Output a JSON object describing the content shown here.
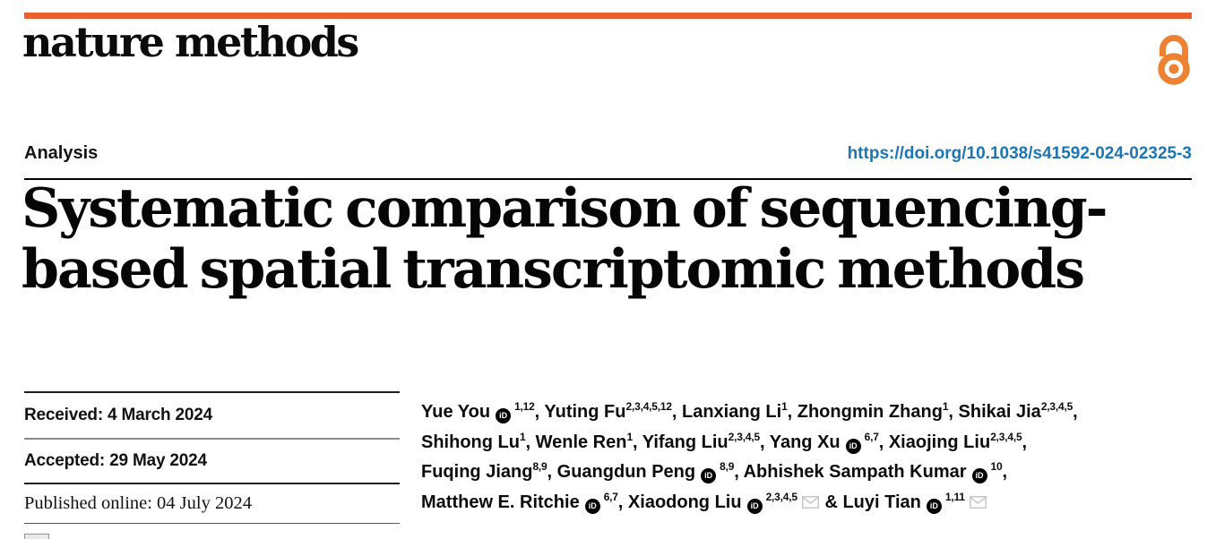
{
  "masthead": {
    "journal": "nature methods"
  },
  "header": {
    "article_type": "Analysis",
    "doi": "https://doi.org/10.1038/s41592-024-02325-3"
  },
  "title": "Systematic comparison of sequencing-based spatial transcriptomic methods",
  "dates": {
    "received": "Received: 4 March 2024",
    "accepted": "Accepted: 29 May 2024",
    "published": "Published online: 04 July 2024"
  },
  "icons": {
    "orcid_label": "iD",
    "open_access": "open-lock",
    "envelope": "email-envelope"
  },
  "colors": {
    "accent_bar_orange": "#e8612c",
    "open_access_orange": "#ee8233",
    "link_blue": "#1b76b3",
    "envelope_grey": "#c7c7c7"
  },
  "authors": {
    "lines": [
      [
        {
          "name": "Yue You",
          "orcid": true,
          "sup": "1,12",
          "sep": ", "
        },
        {
          "name": "Yuting Fu",
          "sup": "2,3,4,5,12",
          "sep": ", "
        },
        {
          "name": "Lanxiang Li",
          "sup": "1",
          "sep": ", "
        },
        {
          "name": "Zhongmin Zhang",
          "sup": "1",
          "sep": ", "
        },
        {
          "name": "Shikai Jia",
          "sup": "2,3,4,5",
          "sep": ","
        }
      ],
      [
        {
          "name": "Shihong Lu",
          "sup": "1",
          "sep": ", "
        },
        {
          "name": "Wenle Ren",
          "sup": "1",
          "sep": ", "
        },
        {
          "name": "Yifang Liu",
          "sup": "2,3,4,5",
          "sep": ", "
        },
        {
          "name": "Yang Xu",
          "orcid": true,
          "sup": "6,7",
          "sep": ", "
        },
        {
          "name": "Xiaojing Liu",
          "sup": "2,3,4,5",
          "sep": ","
        }
      ],
      [
        {
          "name": "Fuqing Jiang",
          "sup": "8,9",
          "sep": ", "
        },
        {
          "name": "Guangdun Peng",
          "orcid": true,
          "sup": "8,9",
          "sep": ", "
        },
        {
          "name": "Abhishek Sampath Kumar",
          "orcid": true,
          "sup": "10",
          "sep": ","
        }
      ],
      [
        {
          "name": "Matthew E. Ritchie",
          "orcid": true,
          "sup": "6,7",
          "sep": ", "
        },
        {
          "name": "Xiaodong Liu",
          "orcid": true,
          "sup": "2,3,4,5",
          "envelope": true,
          "sep": " & "
        },
        {
          "name": "Luyi Tian",
          "orcid": true,
          "sup": "1,11",
          "envelope": true,
          "sep": ""
        }
      ]
    ]
  }
}
